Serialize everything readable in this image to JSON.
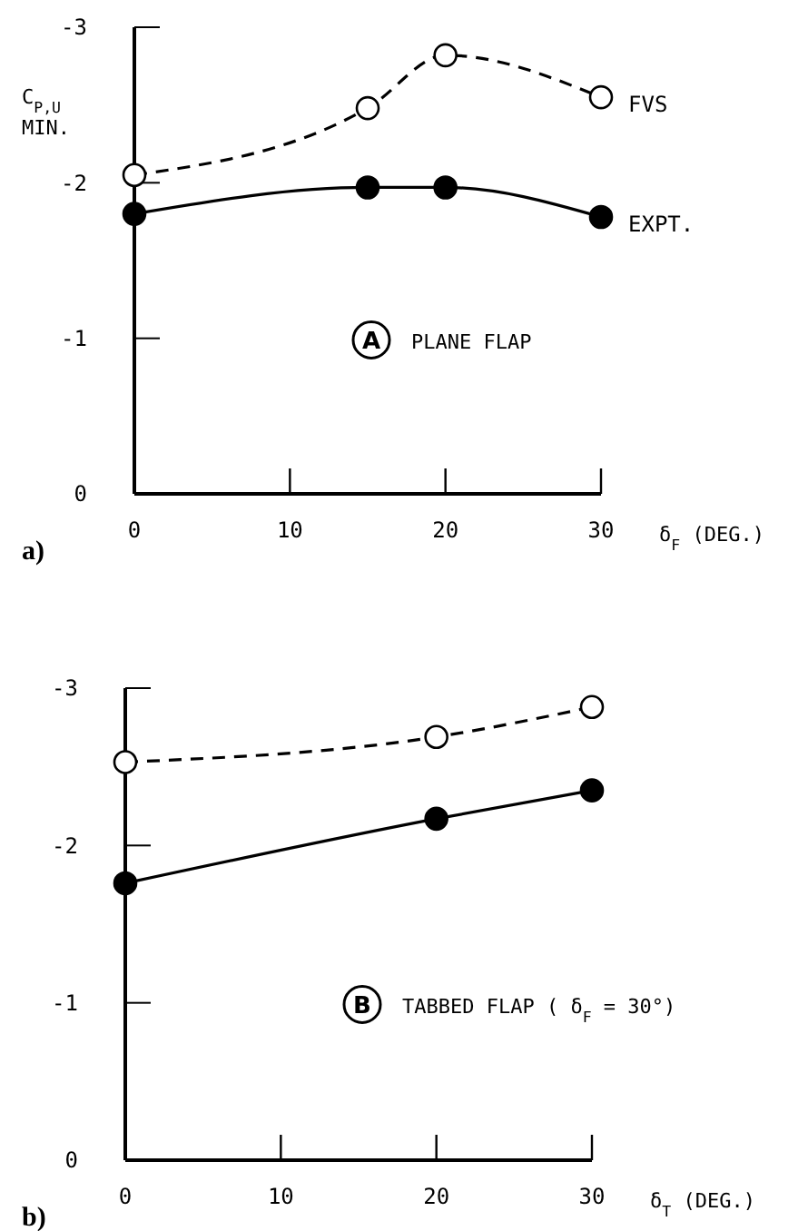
{
  "chart_data": [
    {
      "type": "line",
      "title": "a)",
      "xlabel": "δ$_{F}$ (DEG.)",
      "ylabel": "C$_{P,U}$\nMIN.",
      "x": [
        0,
        15,
        20,
        30
      ],
      "xlim": [
        0,
        30
      ],
      "xticks": [
        0,
        10,
        20,
        30
      ],
      "ylim": [
        0,
        -3
      ],
      "yticks": [
        0,
        -1,
        -2,
        -3
      ],
      "marker": "circle",
      "series": [
        {
          "name": "FVS",
          "color": "#000000",
          "line_style": "dashed",
          "values": [
            -2.05,
            -2.48,
            -2.82,
            -2.55
          ]
        },
        {
          "name": "EXPT.",
          "color": "#000000",
          "line_style": "solid",
          "values": [
            -1.8,
            -1.97,
            -1.97,
            -1.78
          ]
        }
      ],
      "annotations": [
        "A",
        "PLANE FLAP"
      ]
    },
    {
      "type": "line",
      "title": "b)",
      "xlabel": "δ$_{T}$ (DEG.)",
      "x": [
        0,
        20,
        30
      ],
      "xlim": [
        0,
        30
      ],
      "xticks": [
        0,
        10,
        20,
        30
      ],
      "ylim": [
        0,
        -3
      ],
      "yticks": [
        0,
        -1,
        -2,
        -3
      ],
      "marker": "circle",
      "series": [
        {
          "color": "#000000",
          "line_style": "dashed",
          "values": [
            -2.53,
            -2.69,
            -2.88
          ]
        },
        {
          "color": "#000000",
          "line_style": "solid",
          "values": [
            -1.76,
            -2.17,
            -2.35
          ]
        }
      ],
      "annotations": [
        "B",
        "TABBED FLAP ( δ$_{F}$ = 30°)"
      ]
    }
  ]
}
